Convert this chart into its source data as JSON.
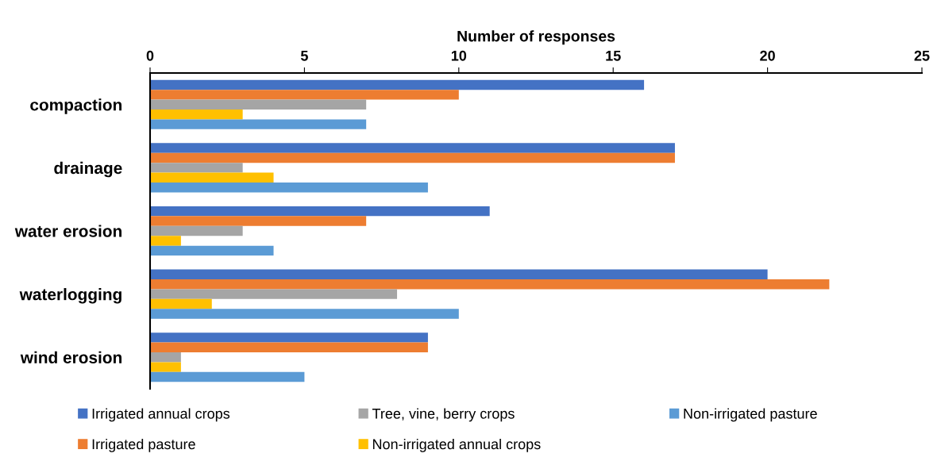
{
  "chart_data": {
    "type": "bar",
    "orientation": "horizontal",
    "xlabel": "Number of responses",
    "categories": [
      "compaction",
      "drainage",
      "water erosion",
      "waterlogging",
      "wind erosion"
    ],
    "series": [
      {
        "name": "Irrigated annual crops",
        "color": "#4472c4",
        "values": [
          16,
          17,
          11,
          20,
          9
        ]
      },
      {
        "name": "Irrigated pasture",
        "color": "#ed7d31",
        "values": [
          10,
          17,
          7,
          22,
          9
        ]
      },
      {
        "name": "Tree, vine, berry crops",
        "color": "#a5a5a5",
        "values": [
          7,
          3,
          3,
          8,
          1
        ]
      },
      {
        "name": "Non-irrigated annual crops",
        "color": "#ffc000",
        "values": [
          3,
          4,
          1,
          2,
          1
        ]
      },
      {
        "name": "Non-irrigated pasture",
        "color": "#5b9bd5",
        "values": [
          7,
          9,
          4,
          10,
          5
        ]
      }
    ],
    "xlim": [
      0,
      25
    ],
    "xticks": [
      0,
      5,
      10,
      15,
      20,
      25
    ],
    "grid": false,
    "legend": "bottom"
  }
}
